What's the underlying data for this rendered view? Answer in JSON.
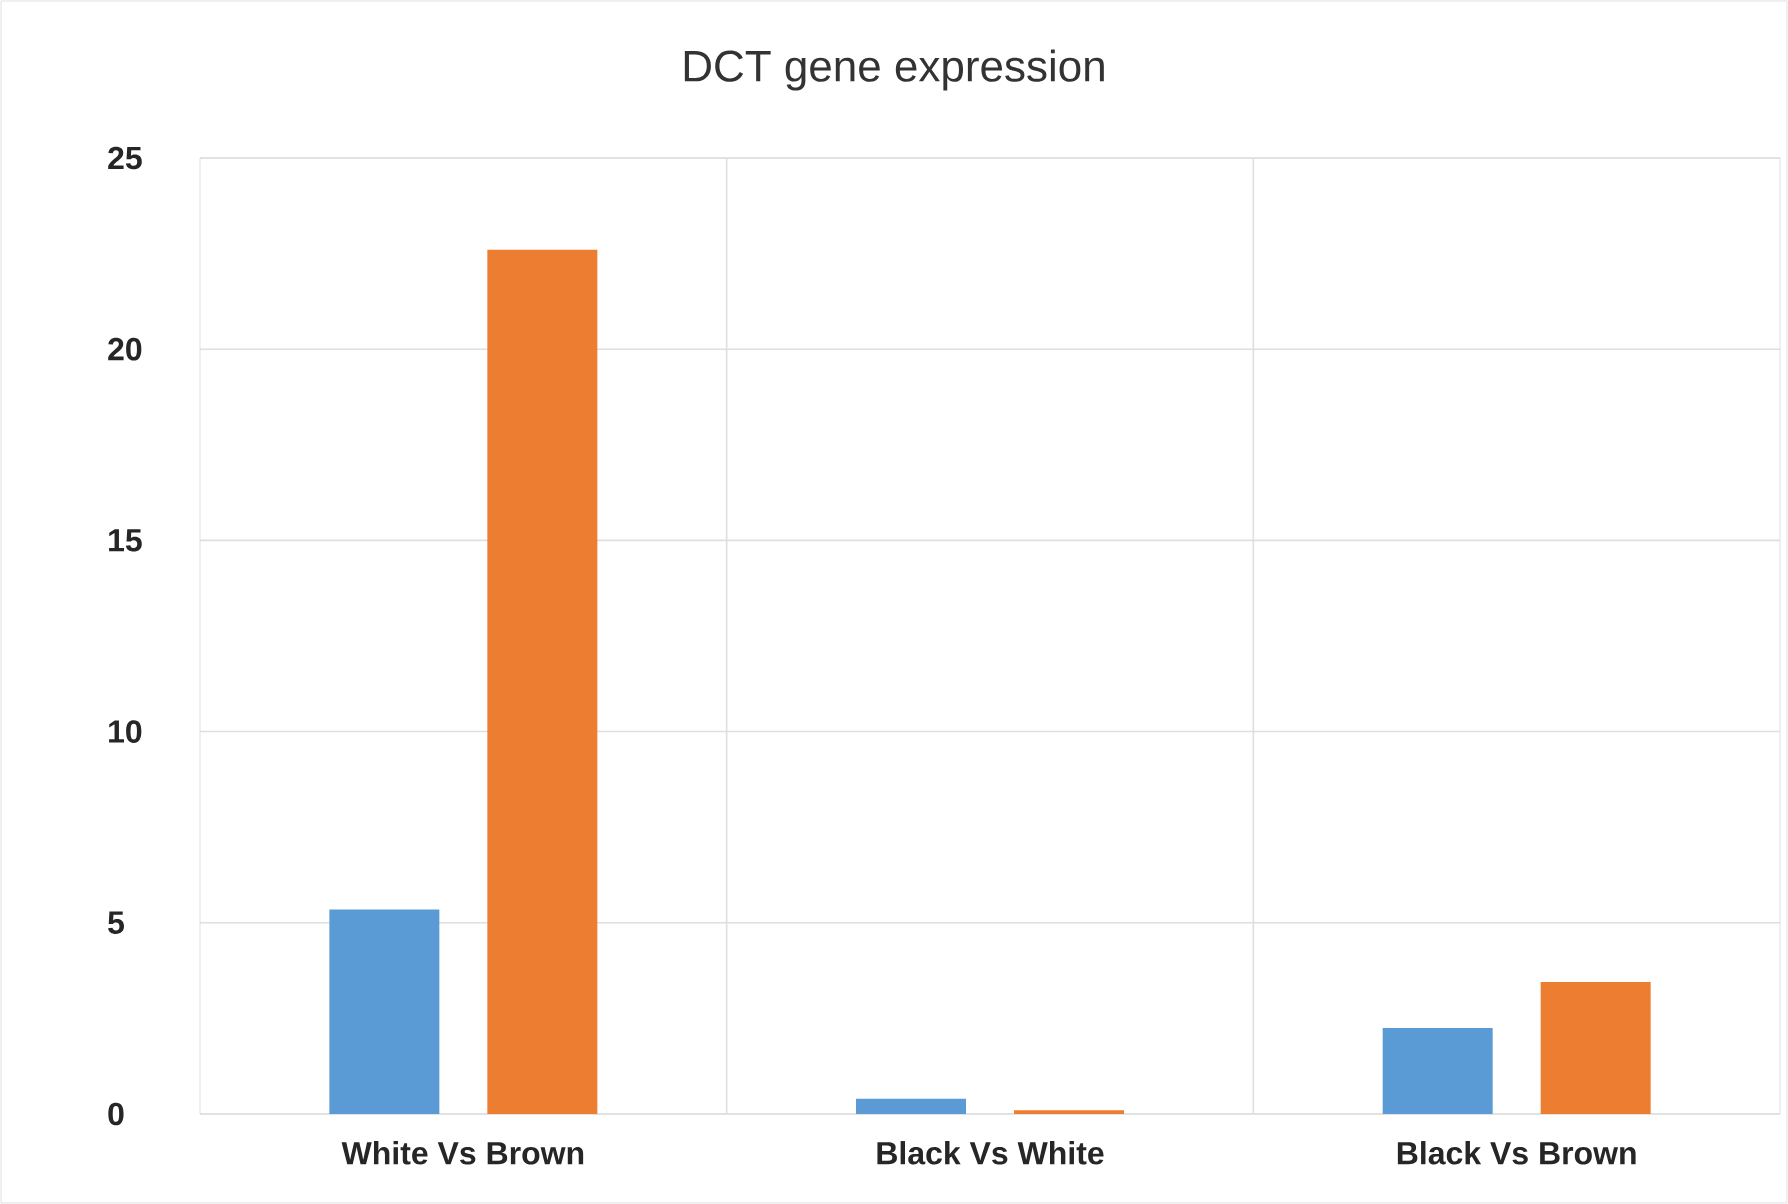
{
  "chart_data": {
    "type": "bar",
    "title": "DCT gene expression",
    "categories": [
      "White Vs Brown",
      "Black Vs White",
      "Black Vs Brown"
    ],
    "series": [
      {
        "color": "#5b9bd5",
        "values": [
          5.35,
          0.4,
          2.25
        ]
      },
      {
        "color": "#ed7d31",
        "values": [
          22.6,
          0.1,
          3.45
        ]
      }
    ],
    "ylim": [
      0,
      25
    ],
    "yticks": [
      0,
      5,
      10,
      15,
      20,
      25
    ],
    "grid": true
  }
}
